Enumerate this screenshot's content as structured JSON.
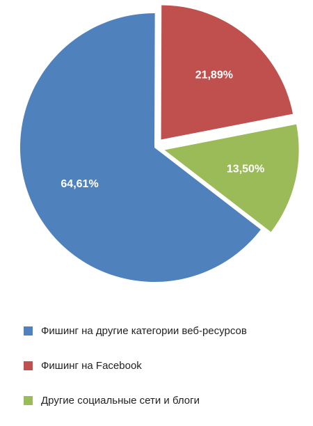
{
  "chart_data": {
    "type": "pie",
    "categories": [
      "Фишинг на другие категории веб-ресурсов",
      "Фишинг на Facebook",
      "Другие социальные сети и блоги"
    ],
    "values": [
      64.61,
      21.89,
      13.5
    ],
    "value_labels": [
      "64,61%",
      "21,89%",
      "13,50%"
    ],
    "colors": [
      "#4f81bd",
      "#c0504d",
      "#9bbb59"
    ],
    "exploded": [
      false,
      true,
      true
    ],
    "legend_position": "bottom",
    "title": ""
  },
  "legend": {
    "items": [
      {
        "label": "Фишинг на другие категории веб-ресурсов",
        "color": "#4f81bd"
      },
      {
        "label": "Фишинг на Facebook",
        "color": "#c0504d"
      },
      {
        "label": "Другие социальные сети и блоги",
        "color": "#9bbb59"
      }
    ]
  }
}
